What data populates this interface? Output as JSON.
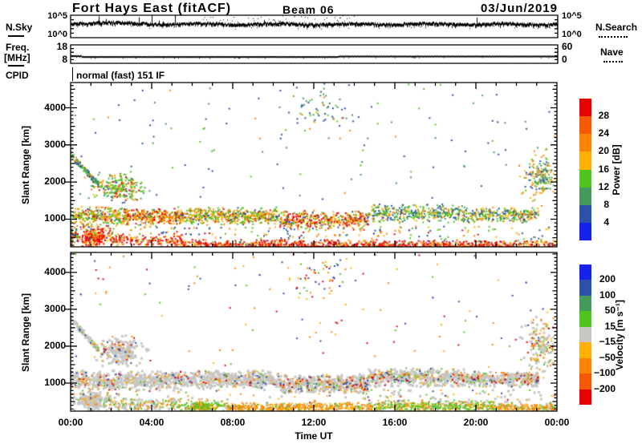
{
  "header": {
    "site": "Fort Hays East (fitACF)",
    "beam": "Beam 06",
    "date": "03/Jun/2019"
  },
  "noise_panel": {
    "label": "N.Sky",
    "right_label": "N.Search",
    "ytick_top": "10^5",
    "ytick_bottom": "10^0"
  },
  "freq_panel": {
    "label_top": "Freq.",
    "label_bottom": "[MHz]",
    "right_label": "Nave",
    "ytick_top": "18",
    "ytick_bottom": "8",
    "right_ytick_top": "60",
    "right_ytick_bottom": "0"
  },
  "cpid": {
    "label": "CPID",
    "value": "normal (fast) 151 IF"
  },
  "xaxis": {
    "label": "Time UT",
    "ticks": [
      "00:00",
      "04:00",
      "08:00",
      "12:00",
      "16:00",
      "20:00",
      "00:00"
    ]
  },
  "yaxis": {
    "label": "Slant Range [km]",
    "label2": "Slant Range [km]",
    "ticks": [
      1000,
      2000,
      3000,
      4000
    ]
  },
  "palette": {
    "red": "#e80000",
    "orr": "#f85800",
    "org": "#fb8500",
    "amb": "#fdb000",
    "grn": "#4fc41c",
    "sea": "#44995c",
    "blu": "#2b51a8",
    "bbl": "#1523ea",
    "gry": "#c6c6c2"
  },
  "colorbars": {
    "power": {
      "title": "Power [dB]",
      "tick_labels": [
        "28",
        "24",
        "20",
        "16",
        "12",
        "8",
        "4"
      ],
      "colors": [
        "#e80000",
        "#f85800",
        "#fb8500",
        "#fdb000",
        "#4fc41c",
        "#44995c",
        "#2b51a8",
        "#1523ea"
      ]
    },
    "velocity": {
      "title": "Velocity [m s⁻¹]",
      "tick_labels": [
        "200",
        "100",
        "50",
        "15",
        "−15",
        "−50",
        "−100",
        "−200"
      ],
      "colors": [
        "#1523ea",
        "#2b51a8",
        "#44995c",
        "#4fc41c",
        "#c6c6c2",
        "#fdb000",
        "#fb8500",
        "#f85800",
        "#e80000"
      ]
    }
  },
  "chart_data": [
    {
      "id": "noise",
      "type": "line",
      "title": "N.Sky sky-noise (log scale, solid) with N.Search (dotted)",
      "ylim": [
        "10^0",
        "10^5"
      ],
      "seed": 11,
      "base_frac": 0.38,
      "hump_t": 1.5,
      "spike_prob": 0.018
    },
    {
      "id": "freq",
      "type": "line",
      "title": "Radar frequency [MHz], solid; Nave dotted",
      "ylim": [
        8,
        18
      ],
      "seed": 5,
      "steps": [
        {
          "t": [
            0,
            0.55
          ],
          "v": 11.0
        },
        {
          "t": [
            0.55,
            13.2
          ],
          "v": 10.35
        },
        {
          "t": [
            13.2,
            24
          ],
          "v": 10.75
        }
      ]
    },
    {
      "id": "power",
      "type": "scatter",
      "title": "Power [dB] range-time plot",
      "xlabel": "Time UT",
      "ylabel": "Slant Range [km]",
      "xlim": [
        0,
        24
      ],
      "ylim": [
        255,
        4680
      ],
      "yticks": [
        1000,
        2000,
        3000,
        4000
      ],
      "seed": 42,
      "clusters": [
        {
          "s": "uniform",
          "t": [
            0,
            24
          ],
          "r": [
            1400,
            4650
          ],
          "n": 120,
          "c": {
            "blu": 4,
            "sea": 3,
            "grn": 2,
            "org": 1
          }
        },
        {
          "s": "blob",
          "t": [
            10.5,
            14.2
          ],
          "r": [
            3200,
            4650
          ],
          "n": 60,
          "c": {
            "blu": 4,
            "sea": 2,
            "grn": 2,
            "amb": 1,
            "org": 1
          }
        },
        {
          "s": "streak",
          "t": [
            0,
            1.4
          ],
          "r": [
            2750,
            1900
          ],
          "th": 160,
          "n": 110,
          "c": {
            "sea": 3,
            "grn": 3,
            "blu": 2,
            "org": 1
          }
        },
        {
          "s": "blob",
          "t": [
            1.2,
            3.7
          ],
          "r": [
            1500,
            2200
          ],
          "n": 240,
          "c": {
            "grn": 4,
            "sea": 2,
            "org": 2,
            "amb": 1,
            "red": 0.5,
            "blu": 0.5
          }
        },
        {
          "s": "band",
          "t": [
            0,
            2.6
          ],
          "r": [
            780,
            1360
          ],
          "n": 280,
          "c": {
            "grn": 3.5,
            "org": 2.5,
            "amb": 2,
            "red": 1,
            "blu": 1
          }
        },
        {
          "s": "band",
          "t": [
            2.6,
            5.3
          ],
          "r": [
            800,
            1300
          ],
          "n": 320,
          "c": {
            "org": 3,
            "red": 2.5,
            "amb": 2,
            "grn": 2,
            "blu": 0.5
          }
        },
        {
          "s": "band",
          "t": [
            5.3,
            7.9
          ],
          "r": [
            830,
            1360
          ],
          "n": 280,
          "c": {
            "grn": 3,
            "org": 3,
            "amb": 2,
            "red": 1,
            "blu": 1
          }
        },
        {
          "s": "band",
          "t": [
            7.9,
            10.3
          ],
          "r": [
            830,
            1320
          ],
          "n": 260,
          "c": {
            "grn": 3.5,
            "org": 2.5,
            "amb": 2,
            "red": 0.8,
            "blu": 1.2
          }
        },
        {
          "s": "band",
          "t": [
            10.3,
            14.7
          ],
          "r": [
            700,
            1250
          ],
          "n": 420,
          "c": {
            "red": 3,
            "org": 3,
            "amb": 1.5,
            "grn": 1.5,
            "blu": 1
          }
        },
        {
          "s": "band",
          "t": [
            14.7,
            19.6
          ],
          "r": [
            880,
            1420
          ],
          "n": 380,
          "c": {
            "grn": 3.5,
            "sea": 2,
            "blu": 2,
            "org": 1.5,
            "amb": 1
          }
        },
        {
          "s": "band",
          "t": [
            19.6,
            23.1
          ],
          "r": [
            880,
            1330
          ],
          "n": 280,
          "c": {
            "grn": 3,
            "org": 2.5,
            "blu": 2,
            "sea": 1.5,
            "amb": 1
          }
        },
        {
          "s": "blob",
          "t": [
            0.4,
            1.9
          ],
          "r": [
            230,
            800
          ],
          "n": 240,
          "c": {
            "red": 6,
            "org": 2.5,
            "amb": 1,
            "grn": 0.5
          }
        },
        {
          "s": "band",
          "t": [
            1.9,
            5.5
          ],
          "r": [
            230,
            620
          ],
          "n": 170,
          "c": {
            "red": 5,
            "org": 3,
            "amb": 1,
            "grn": 1
          }
        },
        {
          "s": "band",
          "t": [
            5.5,
            24
          ],
          "r": [
            190,
            460
          ],
          "n": 820,
          "c": {
            "red": 5.5,
            "org": 2.5,
            "amb": 1,
            "grn": 0.5,
            "blu": 0.5
          }
        },
        {
          "s": "band",
          "t": [
            5.5,
            24
          ],
          "r": [
            200,
            300
          ],
          "n": 330,
          "c": {
            "red": 7,
            "org": 2
          }
        },
        {
          "s": "uniform",
          "t": [
            0,
            24
          ],
          "r": [
            460,
            820
          ],
          "n": 180,
          "c": {
            "grn": 2,
            "org": 2,
            "blu": 2,
            "red": 1,
            "amb": 1
          }
        },
        {
          "s": "blob",
          "t": [
            22.3,
            24
          ],
          "r": [
            1500,
            2750
          ],
          "n": 170,
          "c": {
            "grn": 3,
            "org": 2.5,
            "sea": 2,
            "blu": 1.5,
            "amb": 1
          }
        },
        {
          "s": "band",
          "t": [
            0,
            0.4
          ],
          "r": [
            230,
            800
          ],
          "n": 60,
          "c": {
            "red": 3,
            "org": 2,
            "grn": 2,
            "blu": 1
          }
        }
      ]
    },
    {
      "id": "velocity",
      "type": "scatter",
      "title": "Velocity [m/s] range-time plot",
      "xlabel": "Time UT",
      "ylabel": "Slant Range [km]",
      "xlim": [
        0,
        24
      ],
      "ylim": [
        240,
        4540
      ],
      "yticks": [
        1000,
        2000,
        3000,
        4000
      ],
      "seed": 99,
      "clusters": [
        {
          "s": "uniform",
          "t": [
            0,
            24
          ],
          "r": [
            1400,
            4500
          ],
          "n": 110,
          "c": {
            "red": 2,
            "blu": 2,
            "org": 2,
            "amb": 1.5,
            "grn": 1.5,
            "bbl": 0.5
          }
        },
        {
          "s": "blob",
          "t": [
            10.5,
            14.2
          ],
          "r": [
            3200,
            4500
          ],
          "n": 55,
          "c": {
            "red": 2,
            "blu": 2,
            "org": 2,
            "amb": 1.5,
            "grn": 1.5,
            "bbl": 0.5
          }
        },
        {
          "s": "streak",
          "t": [
            0,
            1.4
          ],
          "r": [
            2750,
            1900
          ],
          "th": 160,
          "n": 90,
          "c": {
            "gry": 7,
            "org": 1,
            "grn": 1,
            "blu": 0.5
          }
        },
        {
          "s": "blob",
          "t": [
            1.2,
            3.7
          ],
          "r": [
            1500,
            2200
          ],
          "n": 220,
          "c": {
            "gry": 8,
            "red": 0.5,
            "blu": 0.5,
            "org": 0.5,
            "amb": 0.5
          }
        },
        {
          "s": "band",
          "t": [
            0,
            5.3
          ],
          "r": [
            780,
            1360
          ],
          "n": 520,
          "c": {
            "gry": 8,
            "org": 0.6,
            "red": 0.4,
            "blu": 0.5,
            "amb": 0.4,
            "grn": 0.3
          }
        },
        {
          "s": "band",
          "t": [
            5.3,
            10.3
          ],
          "r": [
            830,
            1360
          ],
          "n": 480,
          "c": {
            "gry": 8,
            "org": 0.6,
            "red": 0.4,
            "blu": 0.5,
            "amb": 0.4,
            "grn": 0.3
          }
        },
        {
          "s": "band",
          "t": [
            10.3,
            14.7
          ],
          "r": [
            700,
            1250
          ],
          "n": 520,
          "c": {
            "gry": 7.5,
            "red": 0.7,
            "blu": 0.7,
            "org": 0.8,
            "amb": 0.6,
            "grn": 0.3
          }
        },
        {
          "s": "band",
          "t": [
            14.7,
            19.6
          ],
          "r": [
            880,
            1420
          ],
          "n": 480,
          "c": {
            "gry": 7.5,
            "red": 0.6,
            "blu": 0.7,
            "org": 0.6,
            "amb": 0.6,
            "grn": 0.5
          }
        },
        {
          "s": "band",
          "t": [
            19.6,
            23.1
          ],
          "r": [
            880,
            1330
          ],
          "n": 340,
          "c": {
            "gry": 7.5,
            "red": 0.5,
            "blu": 0.6,
            "org": 0.6,
            "amb": 0.5,
            "grn": 0.4
          }
        },
        {
          "s": "blob",
          "t": [
            0.3,
            1.9
          ],
          "r": [
            230,
            800
          ],
          "n": 190,
          "c": {
            "gry": 8,
            "org": 1,
            "amb": 0.5,
            "grn": 0.5
          }
        },
        {
          "s": "band",
          "t": [
            1.9,
            5.4
          ],
          "r": [
            220,
            620
          ],
          "n": 150,
          "c": {
            "gry": 5,
            "org": 2,
            "amb": 1,
            "grn": 1.5
          }
        },
        {
          "s": "blob",
          "t": [
            5.3,
            7.7
          ],
          "r": [
            190,
            540
          ],
          "n": 220,
          "c": {
            "grn": 6.5,
            "org": 1.5,
            "gry": 1,
            "amb": 1
          }
        },
        {
          "s": "band",
          "t": [
            7.7,
            14.9
          ],
          "r": [
            190,
            480
          ],
          "n": 520,
          "c": {
            "org": 5.5,
            "amb": 2,
            "grn": 1,
            "gry": 1
          }
        },
        {
          "s": "band",
          "t": [
            14.9,
            21
          ],
          "r": [
            190,
            540
          ],
          "n": 440,
          "c": {
            "grn": 4.5,
            "org": 2,
            "gry": 1.5,
            "amb": 1.5
          }
        },
        {
          "s": "band",
          "t": [
            21,
            24
          ],
          "r": [
            190,
            460
          ],
          "n": 200,
          "c": {
            "org": 4,
            "amb": 2,
            "gry": 2,
            "grn": 1.5
          }
        },
        {
          "s": "uniform",
          "t": [
            0,
            24
          ],
          "r": [
            460,
            820
          ],
          "n": 150,
          "c": {
            "gry": 4,
            "org": 2,
            "grn": 1.5,
            "amb": 1,
            "blu": 0.7,
            "red": 0.8
          }
        },
        {
          "s": "blob",
          "t": [
            22.3,
            24
          ],
          "r": [
            1200,
            2750
          ],
          "n": 160,
          "c": {
            "gry": 5,
            "org": 2,
            "grn": 1,
            "amb": 1,
            "red": 0.5,
            "blu": 0.5
          }
        }
      ]
    }
  ]
}
